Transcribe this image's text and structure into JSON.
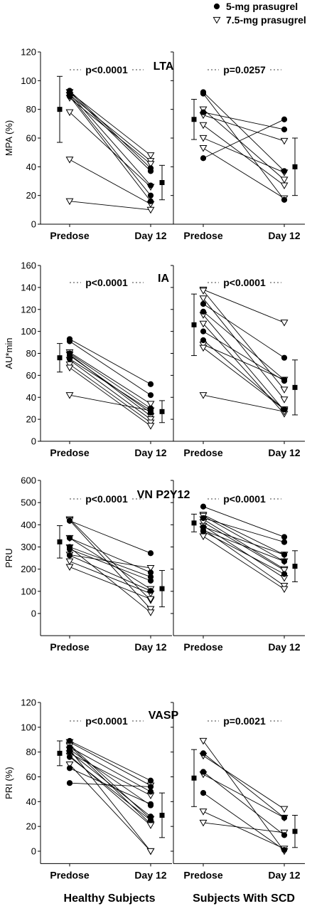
{
  "chart_data": {
    "legend": {
      "position": "top-right",
      "entries": [
        {
          "label": "5-mg prasugrel",
          "marker": "filled-circle"
        },
        {
          "label": "7.5-mg prasugrel",
          "marker": "open-triangle-down"
        }
      ]
    },
    "group_labels": [
      "Healthy Subjects",
      "Subjects With SCD"
    ],
    "time_points": [
      "Predose",
      "Day 12"
    ],
    "panels": [
      {
        "type": "line",
        "title": "LTA",
        "ylabel": "MPA (%)",
        "ylim": [
          0,
          120
        ],
        "yticks": [
          0,
          20,
          40,
          60,
          80,
          100,
          120
        ],
        "groups": [
          {
            "name": "Healthy Subjects",
            "p_value": "p<0.0001",
            "summary": {
              "predose": {
                "mean": 80,
                "lower": 57,
                "upper": 103
              },
              "day12": {
                "mean": 29,
                "lower": 17,
                "upper": 41
              }
            },
            "pairs": [
              {
                "dose": "5-mg",
                "values": [
                  93,
                  39
                ]
              },
              {
                "dose": "5-mg",
                "values": [
                  92,
                  37
                ]
              },
              {
                "dose": "5-mg",
                "values": [
                  91,
                  27
                ]
              },
              {
                "dose": "5-mg",
                "values": [
                  90,
                  20
                ]
              },
              {
                "dose": "5-mg",
                "values": [
                  89,
                  16
                ]
              },
              {
                "dose": "7.5-mg",
                "values": [
                  92,
                  48
                ]
              },
              {
                "dose": "7.5-mg",
                "values": [
                  90,
                  44
                ]
              },
              {
                "dose": "7.5-mg",
                "values": [
                  88,
                  42
                ]
              },
              {
                "dose": "7.5-mg",
                "values": [
                  78,
                  26
                ]
              },
              {
                "dose": "7.5-mg",
                "values": [
                  45,
                  14
                ]
              },
              {
                "dose": "7.5-mg",
                "values": [
                  16,
                  10
                ]
              }
            ]
          },
          {
            "name": "Subjects With SCD",
            "p_value": "p=0.0257",
            "summary": {
              "predose": {
                "mean": 73,
                "lower": 59,
                "upper": 87
              },
              "day12": {
                "mean": 40,
                "lower": 20,
                "upper": 60
              }
            },
            "pairs": [
              {
                "dose": "5-mg",
                "values": [
                  92,
                  37
                ]
              },
              {
                "dose": "5-mg",
                "values": [
                  91,
                  17
                ]
              },
              {
                "dose": "5-mg",
                "values": [
                  46,
                  73
                ]
              },
              {
                "dose": "5-mg",
                "values": [
                  78,
                  66
                ]
              },
              {
                "dose": "7.5-mg",
                "values": [
                  80,
                  31
                ]
              },
              {
                "dose": "7.5-mg",
                "values": [
                  76,
                  58
                ]
              },
              {
                "dose": "7.5-mg",
                "values": [
                  69,
                  27
                ]
              },
              {
                "dose": "7.5-mg",
                "values": [
                  60,
                  36
                ]
              },
              {
                "dose": "7.5-mg",
                "values": [
                  53,
                  18
                ]
              }
            ]
          }
        ]
      },
      {
        "type": "line",
        "title": "IA",
        "ylabel": "AU*min",
        "ylim": [
          0,
          160
        ],
        "yticks": [
          0,
          20,
          40,
          60,
          80,
          100,
          120,
          140,
          160
        ],
        "groups": [
          {
            "name": "Healthy Subjects",
            "p_value": "p<0.0001",
            "summary": {
              "predose": {
                "mean": 76,
                "lower": 63,
                "upper": 89
              },
              "day12": {
                "mean": 27,
                "lower": 17,
                "upper": 37
              }
            },
            "pairs": [
              {
                "dose": "5-mg",
                "values": [
                  93,
                  52
                ]
              },
              {
                "dose": "5-mg",
                "values": [
                  91,
                  42
                ]
              },
              {
                "dose": "5-mg",
                "values": [
                  80,
                  30
                ]
              },
              {
                "dose": "5-mg",
                "values": [
                  78,
                  26
                ]
              },
              {
                "dose": "5-mg",
                "values": [
                  75,
                  28
                ]
              },
              {
                "dose": "7.5-mg",
                "values": [
                  81,
                  34
                ]
              },
              {
                "dose": "7.5-mg",
                "values": [
                  79,
                  23
                ]
              },
              {
                "dose": "7.5-mg",
                "values": [
                  74,
                  20
                ]
              },
              {
                "dose": "7.5-mg",
                "values": [
                  70,
                  17
                ]
              },
              {
                "dose": "7.5-mg",
                "values": [
                  67,
                  14
                ]
              },
              {
                "dose": "7.5-mg",
                "values": [
                  42,
                  28
                ]
              }
            ]
          },
          {
            "name": "Subjects With SCD",
            "p_value": "p<0.0001",
            "summary": {
              "predose": {
                "mean": 106,
                "lower": 78,
                "upper": 134
              },
              "day12": {
                "mean": 49,
                "lower": 24,
                "upper": 74
              }
            },
            "pairs": [
              {
                "dose": "5-mg",
                "values": [
                  125,
                  76
                ]
              },
              {
                "dose": "5-mg",
                "values": [
                  118,
                  56
                ]
              },
              {
                "dose": "5-mg",
                "values": [
                  100,
                  55
                ]
              },
              {
                "dose": "5-mg",
                "values": [
                  92,
                  29
                ]
              },
              {
                "dose": "7.5-mg",
                "values": [
                  138,
                  108
                ]
              },
              {
                "dose": "7.5-mg",
                "values": [
                  137,
                  47
                ]
              },
              {
                "dose": "7.5-mg",
                "values": [
                  130,
                  38
                ]
              },
              {
                "dose": "7.5-mg",
                "values": [
                  115,
                  28
                ]
              },
              {
                "dose": "7.5-mg",
                "values": [
                  107,
                  25
                ]
              },
              {
                "dose": "7.5-mg",
                "values": [
                  88,
                  56
                ]
              },
              {
                "dose": "7.5-mg",
                "values": [
                  85,
                  29
                ]
              },
              {
                "dose": "7.5-mg",
                "values": [
                  42,
                  27
                ]
              }
            ]
          }
        ]
      },
      {
        "type": "line",
        "title": "VN P2Y12",
        "ylabel": "PRU",
        "ylim": [
          -100,
          600
        ],
        "yticks": [
          0,
          100,
          200,
          300,
          400,
          500,
          600
        ],
        "groups": [
          {
            "name": "Healthy Subjects",
            "p_value": "p<0.0001",
            "summary": {
              "predose": {
                "mean": 323,
                "lower": 250,
                "upper": 396
              },
              "day12": {
                "mean": 112,
                "lower": 30,
                "upper": 194
              }
            },
            "pairs": [
              {
                "dose": "5-mg",
                "values": [
                  418,
                  272
                ]
              },
              {
                "dose": "5-mg",
                "values": [
                  340,
                  185
                ]
              },
              {
                "dose": "5-mg",
                "values": [
                  300,
                  165
                ]
              },
              {
                "dose": "5-mg",
                "values": [
                  290,
                  148
                ]
              },
              {
                "dose": "5-mg",
                "values": [
                  262,
                  102
                ]
              },
              {
                "dose": "7.5-mg",
                "values": [
                  425,
                  60
                ]
              },
              {
                "dose": "7.5-mg",
                "values": [
                  420,
                  20
                ]
              },
              {
                "dose": "7.5-mg",
                "values": [
                  340,
                  110
                ]
              },
              {
                "dose": "7.5-mg",
                "values": [
                  298,
                  5
                ]
              },
              {
                "dose": "7.5-mg",
                "values": [
                  265,
                  205
                ]
              },
              {
                "dose": "7.5-mg",
                "values": [
                  235,
                  90
                ]
              },
              {
                "dose": "7.5-mg",
                "values": [
                  210,
                  65
                ]
              }
            ]
          },
          {
            "name": "Subjects With SCD",
            "p_value": "p<0.0001",
            "summary": {
              "predose": {
                "mean": 408,
                "lower": 368,
                "upper": 448
              },
              "day12": {
                "mean": 213,
                "lower": 143,
                "upper": 283
              }
            },
            "pairs": [
              {
                "dose": "5-mg",
                "values": [
                  482,
                  345
                ]
              },
              {
                "dose": "5-mg",
                "values": [
                  430,
                  322
                ]
              },
              {
                "dose": "5-mg",
                "values": [
                  390,
                  265
                ]
              },
              {
                "dose": "5-mg",
                "values": [
                  375,
                  235
                ]
              },
              {
                "dose": "5-mg",
                "values": [
                  370,
                  178
                ]
              },
              {
                "dose": "7.5-mg",
                "values": [
                  445,
                  265
                ]
              },
              {
                "dose": "7.5-mg",
                "values": [
                  440,
                  235
                ]
              },
              {
                "dose": "7.5-mg",
                "values": [
                  425,
                  200
                ]
              },
              {
                "dose": "7.5-mg",
                "values": [
                  412,
                  195
                ]
              },
              {
                "dose": "7.5-mg",
                "values": [
                  395,
                  160
                ]
              },
              {
                "dose": "7.5-mg",
                "values": [
                  380,
                  125
                ]
              },
              {
                "dose": "7.5-mg",
                "values": [
                  348,
                  110
                ]
              }
            ]
          }
        ]
      },
      {
        "type": "line",
        "title": "VASP",
        "ylabel": "PRI (%)",
        "ylim": [
          -10,
          120
        ],
        "yticks": [
          0,
          20,
          40,
          60,
          80,
          100,
          120
        ],
        "groups": [
          {
            "name": "Healthy Subjects",
            "p_value": "p<0.0001",
            "summary": {
              "predose": {
                "mean": 79,
                "lower": 69,
                "upper": 89
              },
              "day12": {
                "mean": 29,
                "lower": 11,
                "upper": 47
              }
            },
            "pairs": [
              {
                "dose": "5-mg",
                "values": [
                  89,
                  57
                ]
              },
              {
                "dose": "5-mg",
                "values": [
                  84,
                  48
                ]
              },
              {
                "dose": "5-mg",
                "values": [
                  82,
                  37
                ]
              },
              {
                "dose": "5-mg",
                "values": [
                  80,
                  28
                ]
              },
              {
                "dose": "5-mg",
                "values": [
                  76,
                  25
                ]
              },
              {
                "dose": "5-mg",
                "values": [
                  67,
                  38
                ]
              },
              {
                "dose": "5-mg",
                "values": [
                  55,
                  52
                ]
              },
              {
                "dose": "7.5-mg",
                "values": [
                  88,
                  53
                ]
              },
              {
                "dose": "7.5-mg",
                "values": [
                  86,
                  26
                ]
              },
              {
                "dose": "7.5-mg",
                "values": [
                  85,
                  22
                ]
              },
              {
                "dose": "7.5-mg",
                "values": [
                  82,
                  0
                ]
              },
              {
                "dose": "7.5-mg",
                "values": [
                  79,
                  45
                ]
              },
              {
                "dose": "7.5-mg",
                "values": [
                  77,
                  21
                ]
              },
              {
                "dose": "7.5-mg",
                "values": [
                  70,
                  0
                ]
              }
            ]
          },
          {
            "name": "Subjects With SCD",
            "p_value": "p=0.0021",
            "summary": {
              "predose": {
                "mean": 59,
                "lower": 36,
                "upper": 82
              },
              "day12": {
                "mean": 16,
                "lower": 3,
                "upper": 29
              }
            },
            "pairs": [
              {
                "dose": "5-mg",
                "values": [
                  79,
                  27
                ]
              },
              {
                "dose": "5-mg",
                "values": [
                  64,
                  13
                ]
              },
              {
                "dose": "5-mg",
                "values": [
                  47,
                  1
                ]
              },
              {
                "dose": "7.5-mg",
                "values": [
                  89,
                  0
                ]
              },
              {
                "dose": "7.5-mg",
                "values": [
                  77,
                  34
                ]
              },
              {
                "dose": "7.5-mg",
                "values": [
                  62,
                  27
                ]
              },
              {
                "dose": "7.5-mg",
                "values": [
                  32,
                  2
                ]
              },
              {
                "dose": "7.5-mg",
                "values": [
                  23,
                  15
                ]
              }
            ]
          }
        ]
      }
    ]
  }
}
